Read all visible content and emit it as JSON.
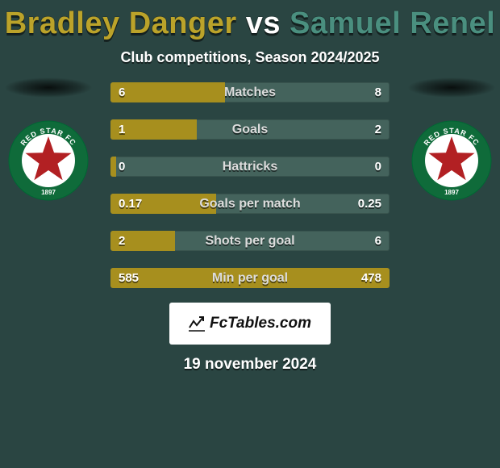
{
  "title_player1": "Bradley Danger",
  "title_vs": "vs",
  "title_player2": "Samuel Renel",
  "title_player1_color": "#bba32a",
  "title_vs_color": "#ffffff",
  "title_player2_color": "#4a8f7f",
  "subtitle": "Club competitions, Season 2024/2025",
  "rows": [
    {
      "label": "Matches",
      "left": "6",
      "right": "8",
      "left_pct": 41
    },
    {
      "label": "Goals",
      "left": "1",
      "right": "2",
      "left_pct": 31
    },
    {
      "label": "Hattricks",
      "left": "0",
      "right": "0",
      "left_pct": 2
    },
    {
      "label": "Goals per match",
      "left": "0.17",
      "right": "0.25",
      "left_pct": 38
    },
    {
      "label": "Shots per goal",
      "left": "2",
      "right": "6",
      "left_pct": 23
    },
    {
      "label": "Min per goal",
      "left": "585",
      "right": "478",
      "left_pct": 100
    }
  ],
  "bar_color_left": "#a78f1e",
  "bar_color_right": "#44635c",
  "watermark": "FcTables.com",
  "date": "19 november 2024",
  "badge": {
    "ring_outer": "#0f6b3a",
    "ring_text": "#ffffff",
    "inner_bg": "#ffffff",
    "star_color": "#b22023",
    "top_text": "RED STAR FC",
    "bottom_text": "1897"
  }
}
